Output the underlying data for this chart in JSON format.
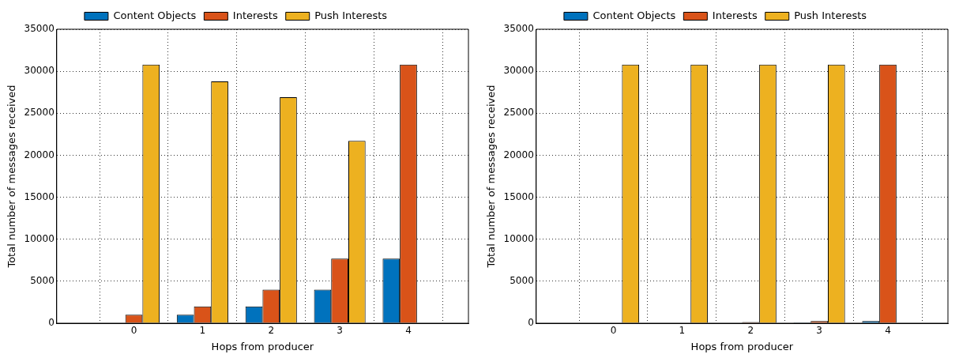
{
  "chart_data": [
    {
      "type": "bar",
      "xlabel": "Hops from producer",
      "ylabel": "Total number of messages received",
      "x": [
        0,
        1,
        2,
        3,
        4
      ],
      "xlim": [
        -1.125,
        4.875
      ],
      "xticks": [
        0,
        1,
        2,
        3,
        4
      ],
      "ylim": [
        0,
        35000
      ],
      "yticks": [
        0,
        5000,
        10000,
        15000,
        20000,
        25000,
        30000,
        35000
      ],
      "grid": true,
      "legend": "top",
      "series": [
        {
          "name": "Content Objects",
          "color": "#0072bd",
          "values": [
            0,
            1000,
            2000,
            4000,
            7700
          ]
        },
        {
          "name": "Interests",
          "color": "#d95319",
          "values": [
            1000,
            2000,
            4000,
            7700,
            30800
          ]
        },
        {
          "name": "Push Interests",
          "color": "#edb120",
          "values": [
            30800,
            28800,
            26900,
            21700,
            0
          ]
        }
      ]
    },
    {
      "type": "bar",
      "xlabel": "Hops from producer",
      "ylabel": "Total number of messages received",
      "x": [
        0,
        1,
        2,
        3,
        4
      ],
      "xlim": [
        -1.125,
        4.875
      ],
      "xticks": [
        0,
        1,
        2,
        3,
        4
      ],
      "ylim": [
        0,
        35000
      ],
      "yticks": [
        0,
        5000,
        10000,
        15000,
        20000,
        25000,
        30000,
        35000
      ],
      "grid": true,
      "legend": "top",
      "series": [
        {
          "name": "Content Objects",
          "color": "#0072bd",
          "values": [
            0,
            0,
            0,
            100,
            250
          ]
        },
        {
          "name": "Interests",
          "color": "#d95319",
          "values": [
            0,
            0,
            150,
            250,
            30800
          ]
        },
        {
          "name": "Push Interests",
          "color": "#edb120",
          "values": [
            30800,
            30800,
            30800,
            30800,
            0
          ]
        }
      ]
    }
  ]
}
